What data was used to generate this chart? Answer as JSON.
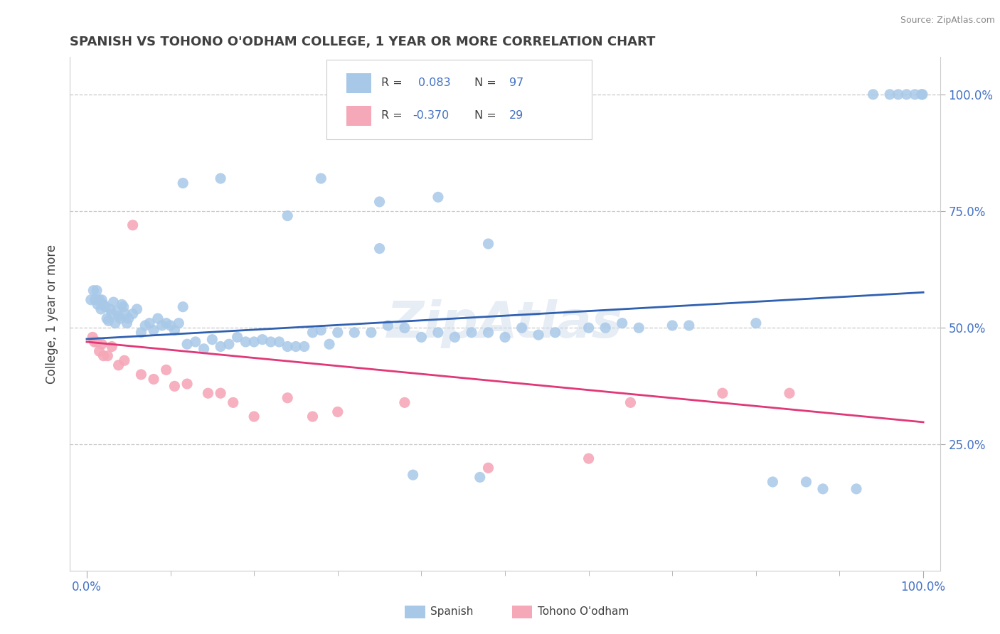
{
  "title": "SPANISH VS TOHONO O'ODHAM COLLEGE, 1 YEAR OR MORE CORRELATION CHART",
  "source_text": "Source: ZipAtlas.com",
  "ylabel": "College, 1 year or more",
  "xlim": [
    -0.02,
    1.02
  ],
  "ylim": [
    -0.02,
    1.08
  ],
  "blue_color": "#a8c8e8",
  "pink_color": "#f5a8b8",
  "blue_line_color": "#3060b0",
  "pink_line_color": "#e03878",
  "title_color": "#404040",
  "axis_label_color": "#4472c4",
  "grid_color": "#c8c8c8",
  "background_color": "#ffffff",
  "blue_line_y0": 0.476,
  "blue_line_y1": 0.576,
  "pink_line_y0": 0.47,
  "pink_line_y1": 0.298,
  "spanish_x": [
    0.005,
    0.008,
    0.01,
    0.012,
    0.013,
    0.015,
    0.017,
    0.018,
    0.02,
    0.022,
    0.024,
    0.026,
    0.028,
    0.03,
    0.032,
    0.034,
    0.036,
    0.038,
    0.04,
    0.042,
    0.044,
    0.046,
    0.048,
    0.05,
    0.055,
    0.06,
    0.065,
    0.07,
    0.075,
    0.08,
    0.085,
    0.09,
    0.095,
    0.1,
    0.105,
    0.11,
    0.115,
    0.12,
    0.13,
    0.14,
    0.15,
    0.16,
    0.17,
    0.18,
    0.19,
    0.2,
    0.21,
    0.22,
    0.23,
    0.24,
    0.25,
    0.26,
    0.27,
    0.28,
    0.29,
    0.3,
    0.32,
    0.34,
    0.36,
    0.38,
    0.4,
    0.42,
    0.44,
    0.46,
    0.48,
    0.5,
    0.52,
    0.54,
    0.56,
    0.6,
    0.62,
    0.64,
    0.66,
    0.7,
    0.72,
    0.8,
    0.82,
    0.86,
    0.88,
    0.92,
    0.94,
    0.96,
    0.97,
    0.98,
    0.99,
    0.998,
    0.999,
    0.16,
    0.24,
    0.28,
    0.35,
    0.42,
    0.35,
    0.48,
    0.47,
    0.39,
    0.115
  ],
  "spanish_y": [
    0.56,
    0.58,
    0.56,
    0.58,
    0.55,
    0.56,
    0.54,
    0.56,
    0.55,
    0.545,
    0.52,
    0.515,
    0.54,
    0.53,
    0.555,
    0.51,
    0.535,
    0.525,
    0.52,
    0.55,
    0.545,
    0.53,
    0.51,
    0.52,
    0.53,
    0.54,
    0.49,
    0.505,
    0.51,
    0.495,
    0.52,
    0.505,
    0.51,
    0.505,
    0.495,
    0.51,
    0.545,
    0.465,
    0.47,
    0.455,
    0.475,
    0.46,
    0.465,
    0.48,
    0.47,
    0.47,
    0.475,
    0.47,
    0.47,
    0.46,
    0.46,
    0.46,
    0.49,
    0.495,
    0.465,
    0.49,
    0.49,
    0.49,
    0.505,
    0.5,
    0.48,
    0.49,
    0.48,
    0.49,
    0.49,
    0.48,
    0.5,
    0.485,
    0.49,
    0.5,
    0.5,
    0.51,
    0.5,
    0.505,
    0.505,
    0.51,
    0.17,
    0.17,
    0.155,
    0.155,
    1.0,
    1.0,
    1.0,
    1.0,
    1.0,
    1.0,
    1.0,
    0.82,
    0.74,
    0.82,
    0.77,
    0.78,
    0.67,
    0.68,
    0.18,
    0.185,
    0.81
  ],
  "tohono_x": [
    0.007,
    0.009,
    0.012,
    0.015,
    0.018,
    0.02,
    0.025,
    0.03,
    0.038,
    0.045,
    0.055,
    0.065,
    0.08,
    0.095,
    0.105,
    0.12,
    0.145,
    0.16,
    0.175,
    0.2,
    0.24,
    0.27,
    0.3,
    0.38,
    0.48,
    0.6,
    0.65,
    0.76,
    0.84
  ],
  "tohono_y": [
    0.48,
    0.47,
    0.47,
    0.45,
    0.465,
    0.44,
    0.44,
    0.46,
    0.42,
    0.43,
    0.72,
    0.4,
    0.39,
    0.41,
    0.375,
    0.38,
    0.36,
    0.36,
    0.34,
    0.31,
    0.35,
    0.31,
    0.32,
    0.34,
    0.2,
    0.22,
    0.34,
    0.36,
    0.36
  ]
}
